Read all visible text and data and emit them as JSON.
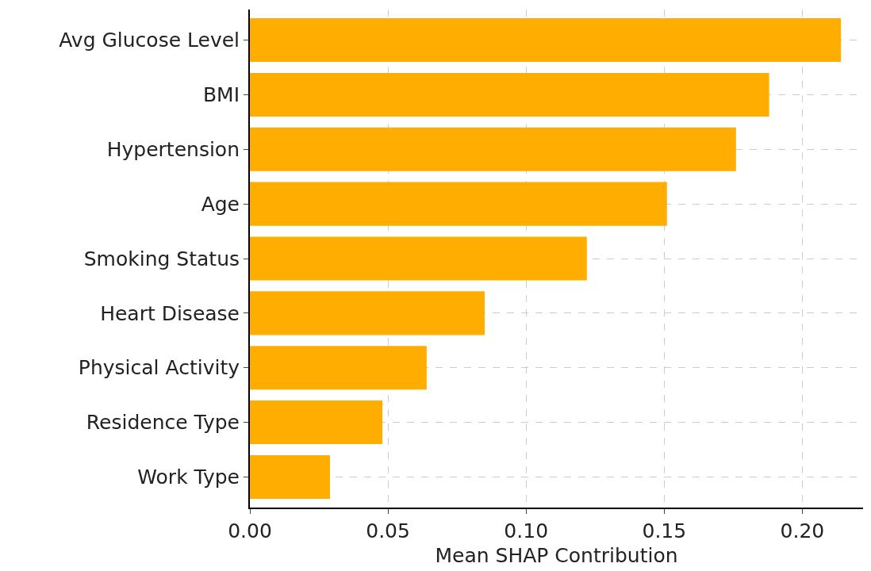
{
  "chart_data": {
    "type": "bar",
    "orientation": "horizontal",
    "xlabel": "Mean SHAP Contribution",
    "categories": [
      "Avg Glucose Level",
      "BMI",
      "Hypertension",
      "Age",
      "Smoking Status",
      "Heart Disease",
      "Physical Activity",
      "Residence Type",
      "Work Type"
    ],
    "values": [
      0.214,
      0.188,
      0.176,
      0.151,
      0.122,
      0.085,
      0.064,
      0.048,
      0.029
    ],
    "color": "#ffad00",
    "xlim": [
      0,
      0.222
    ],
    "xticks": [
      {
        "value": 0,
        "label": "0.00"
      },
      {
        "value": 0.05,
        "label": "0.05"
      },
      {
        "value": 0.1,
        "label": "0.10"
      },
      {
        "value": 0.15,
        "label": "0.15"
      },
      {
        "value": 0.2,
        "label": "0.20"
      }
    ],
    "grid": true
  }
}
